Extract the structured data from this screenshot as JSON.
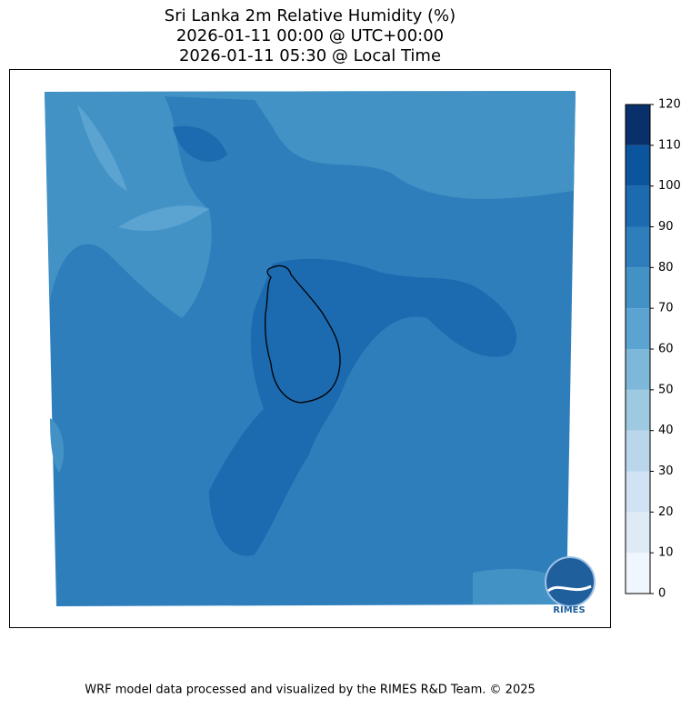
{
  "title": [
    "Sri Lanka 2m Relative Humidity (%)",
    "2026-01-11 00:00 @ UTC+00:00",
    "2026-01-11 05:30 @ Local Time"
  ],
  "colorbar": {
    "ticks": [
      0,
      10,
      20,
      30,
      40,
      50,
      60,
      70,
      80,
      90,
      100,
      110,
      120
    ],
    "colors": [
      "#f0f6fd",
      "#deebf7",
      "#d0e2f3",
      "#bad6eb",
      "#9ecae1",
      "#7db8da",
      "#5ba3d0",
      "#4292c6",
      "#2e7ebc",
      "#1c6aaf",
      "#0b559f",
      "#08306b"
    ]
  },
  "logo": "RIMES",
  "footer": "WRF model data processed and visualized by the RIMES R&D Team. © 2025"
}
